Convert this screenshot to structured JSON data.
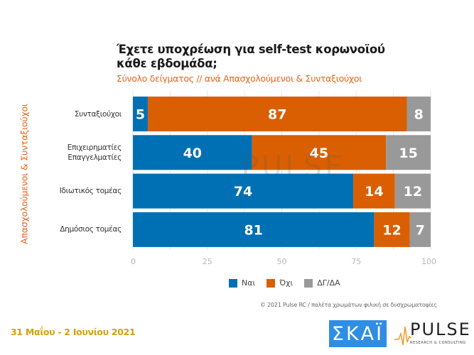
{
  "chart_data": {
    "type": "bar",
    "orientation": "horizontal",
    "stacked": true,
    "title": "Έχετε υποχρέωση για self-test κορωνοϊού κάθε εβδομάδα;",
    "subtitle": "Σύνολο δείγματος // ανά Απασχολούμενοι & Συνταξιούχοι",
    "ylabel": "Απασχολούμενοι & Συνταξιούχοι",
    "xlabel": "",
    "xlim": [
      0,
      100
    ],
    "xticks": [
      "0",
      "25",
      "50",
      "75",
      "100"
    ],
    "grid": true,
    "legend_position": "bottom",
    "categories": [
      {
        "lines": [
          "Συνταξιούχοι"
        ]
      },
      {
        "lines": [
          "Επιχειρηματίες",
          "Επαγγελματίες"
        ]
      },
      {
        "lines": [
          "Ιδιωτικός τομέας"
        ]
      },
      {
        "lines": [
          "Δημόσιος τομέας"
        ]
      }
    ],
    "series": [
      {
        "name": "Ναι",
        "color": "#0070b4",
        "values": [
          5,
          40,
          74,
          81
        ]
      },
      {
        "name": "Όχι",
        "color": "#d95f02",
        "values": [
          87,
          45,
          14,
          12
        ]
      },
      {
        "name": "ΔΓ/ΔΑ",
        "color": "#999999",
        "values": [
          8,
          15,
          12,
          7
        ]
      }
    ]
  },
  "footer": {
    "copyright": "© 2021 Pulse RC  /  παλέτα χρωμάτων φιλική σε δυσχρωματοψίες",
    "date": "31 Μαΐου - 2 Ιουνίου 2021"
  },
  "logos": {
    "skai": "ΣΚΑΪ",
    "pulse": "PULSE",
    "pulse_sub": "RESEARCH & CONSULTING"
  },
  "watermark": "PULSE"
}
